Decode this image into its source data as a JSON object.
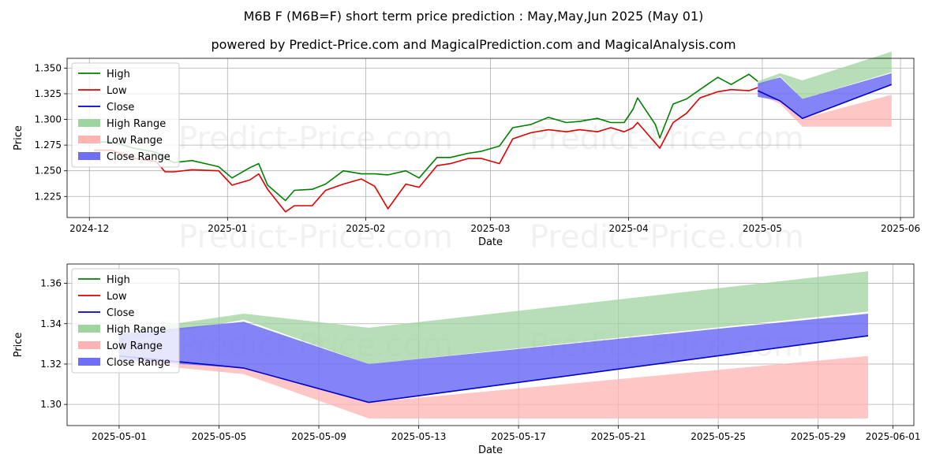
{
  "title_line1": "M6B F (M6B=F) short term price prediction : May,May,Jun 2025 (May 01)",
  "title_line2": "powered by Predict-Price.com and MagicalPrediction.com and MagicalAnalysis.com",
  "watermark": "Predict-Price.com",
  "colors": {
    "high": "#008000",
    "low": "#e00000",
    "close": "#0000cc",
    "high_range": "#9fd39f",
    "low_range": "#ffb3b3",
    "close_range": "#6f6ff5"
  },
  "chart_data": [
    {
      "type": "line",
      "xlabel": "Date",
      "ylabel": "Price",
      "x_ticks": [
        "2024-12",
        "2025-01",
        "2025-02",
        "2025-03",
        "2025-04",
        "2025-05",
        "2025-06"
      ],
      "y_ticks": [
        "1.225",
        "1.250",
        "1.275",
        "1.300",
        "1.325",
        "1.350"
      ],
      "xlim": [
        "2024-11-26",
        "2025-06-04"
      ],
      "ylim": [
        1.2045,
        1.3595
      ],
      "grid": true,
      "legend": {
        "position": "top-left",
        "entries": [
          "High",
          "Low",
          "Close",
          "High Range",
          "Low Range",
          "Close Range"
        ]
      },
      "series": [
        {
          "name": "High",
          "x": [
            "2024-12-02",
            "2024-12-06",
            "2024-12-11",
            "2024-12-16",
            "2024-12-18",
            "2024-12-20",
            "2024-12-24",
            "2024-12-30",
            "2025-01-02",
            "2025-01-06",
            "2025-01-08",
            "2025-01-10",
            "2025-01-14",
            "2025-01-16",
            "2025-01-20",
            "2025-01-23",
            "2025-01-27",
            "2025-01-31",
            "2025-02-03",
            "2025-02-06",
            "2025-02-10",
            "2025-02-13",
            "2025-02-17",
            "2025-02-20",
            "2025-02-24",
            "2025-02-27",
            "2025-03-03",
            "2025-03-06",
            "2025-03-10",
            "2025-03-14",
            "2025-03-18",
            "2025-03-21",
            "2025-03-25",
            "2025-03-28",
            "2025-03-31",
            "2025-04-02",
            "2025-04-03",
            "2025-04-07",
            "2025-04-08",
            "2025-04-11",
            "2025-04-14",
            "2025-04-17",
            "2025-04-21",
            "2025-04-24",
            "2025-04-28",
            "2025-04-30"
          ],
          "y": [
            1.278,
            1.278,
            1.272,
            1.268,
            1.262,
            1.258,
            1.26,
            1.254,
            1.243,
            1.253,
            1.257,
            1.236,
            1.221,
            1.231,
            1.232,
            1.237,
            1.25,
            1.247,
            1.247,
            1.246,
            1.25,
            1.243,
            1.263,
            1.263,
            1.267,
            1.269,
            1.274,
            1.292,
            1.295,
            1.302,
            1.297,
            1.298,
            1.301,
            1.297,
            1.297,
            1.31,
            1.321,
            1.295,
            1.282,
            1.315,
            1.32,
            1.329,
            1.341,
            1.334,
            1.344,
            1.337
          ]
        },
        {
          "name": "Low",
          "x": [
            "2024-12-02",
            "2024-12-06",
            "2024-12-11",
            "2024-12-16",
            "2024-12-18",
            "2024-12-20",
            "2024-12-24",
            "2024-12-30",
            "2025-01-02",
            "2025-01-06",
            "2025-01-08",
            "2025-01-10",
            "2025-01-14",
            "2025-01-16",
            "2025-01-20",
            "2025-01-23",
            "2025-01-27",
            "2025-01-31",
            "2025-02-03",
            "2025-02-06",
            "2025-02-10",
            "2025-02-13",
            "2025-02-17",
            "2025-02-20",
            "2025-02-24",
            "2025-02-27",
            "2025-03-03",
            "2025-03-06",
            "2025-03-10",
            "2025-03-14",
            "2025-03-18",
            "2025-03-21",
            "2025-03-25",
            "2025-03-28",
            "2025-03-31",
            "2025-04-02",
            "2025-04-03",
            "2025-04-07",
            "2025-04-08",
            "2025-04-11",
            "2025-04-14",
            "2025-04-17",
            "2025-04-21",
            "2025-04-24",
            "2025-04-28",
            "2025-04-30"
          ],
          "y": [
            1.27,
            1.27,
            1.262,
            1.259,
            1.249,
            1.249,
            1.251,
            1.25,
            1.236,
            1.241,
            1.247,
            1.232,
            1.21,
            1.216,
            1.216,
            1.231,
            1.237,
            1.242,
            1.235,
            1.213,
            1.237,
            1.234,
            1.255,
            1.257,
            1.262,
            1.262,
            1.257,
            1.281,
            1.287,
            1.29,
            1.288,
            1.29,
            1.288,
            1.292,
            1.288,
            1.292,
            1.297,
            1.277,
            1.272,
            1.297,
            1.306,
            1.321,
            1.327,
            1.329,
            1.328,
            1.331
          ]
        },
        {
          "name": "Close",
          "x": [
            "2025-04-30",
            "2025-05-05",
            "2025-05-10",
            "2025-05-30"
          ],
          "y": [
            1.328,
            1.318,
            1.301,
            1.334
          ]
        },
        {
          "name": "High Range",
          "x": [
            "2025-04-30",
            "2025-05-05",
            "2025-05-10",
            "2025-05-30"
          ],
          "upper": [
            1.337,
            1.345,
            1.338,
            1.366
          ],
          "lower": [
            1.332,
            1.342,
            1.32,
            1.346
          ]
        },
        {
          "name": "Low Range",
          "x": [
            "2025-04-30",
            "2025-05-05",
            "2025-05-10",
            "2025-05-30"
          ],
          "upper": [
            1.328,
            1.318,
            1.301,
            1.324
          ],
          "lower": [
            1.325,
            1.315,
            1.293,
            1.293
          ]
        },
        {
          "name": "Close Range",
          "x": [
            "2025-04-30",
            "2025-05-05",
            "2025-05-10",
            "2025-05-30"
          ],
          "upper": [
            1.335,
            1.341,
            1.32,
            1.345
          ],
          "lower": [
            1.322,
            1.318,
            1.301,
            1.334
          ]
        }
      ]
    },
    {
      "type": "line",
      "xlabel": "Date",
      "ylabel": "Price",
      "x_ticks": [
        "2025-05-01",
        "2025-05-05",
        "2025-05-09",
        "2025-05-13",
        "2025-05-17",
        "2025-05-21",
        "2025-05-25",
        "2025-05-29",
        "2025-06-01"
      ],
      "y_ticks": [
        "1.30",
        "1.32",
        "1.34",
        "1.36"
      ],
      "xlim": [
        "2025-04-28 22:00",
        "2025-06-01 20:00"
      ],
      "ylim": [
        1.2895,
        1.3696
      ],
      "grid": true,
      "legend": {
        "position": "top-left",
        "entries": [
          "High",
          "Low",
          "Close",
          "High Range",
          "Low Range",
          "Close Range"
        ]
      },
      "series": [
        {
          "name": "Close",
          "x": [
            "2025-05-01",
            "2025-05-06",
            "2025-05-11",
            "2025-05-31"
          ],
          "y": [
            1.324,
            1.318,
            1.301,
            1.334
          ]
        },
        {
          "name": "High Range",
          "x": [
            "2025-05-01",
            "2025-05-06",
            "2025-05-11",
            "2025-05-31"
          ],
          "upper": [
            1.336,
            1.345,
            1.338,
            1.366
          ],
          "lower": [
            1.331,
            1.342,
            1.32,
            1.346
          ]
        },
        {
          "name": "Low Range",
          "x": [
            "2025-05-01",
            "2025-05-06",
            "2025-05-11",
            "2025-05-31"
          ],
          "upper": [
            1.324,
            1.318,
            1.301,
            1.324
          ],
          "lower": [
            1.321,
            1.315,
            1.293,
            1.293
          ]
        },
        {
          "name": "Close Range",
          "x": [
            "2025-05-01",
            "2025-05-06",
            "2025-05-11",
            "2025-05-31"
          ],
          "upper": [
            1.335,
            1.341,
            1.32,
            1.345
          ],
          "lower": [
            1.322,
            1.318,
            1.301,
            1.334
          ]
        }
      ]
    }
  ]
}
